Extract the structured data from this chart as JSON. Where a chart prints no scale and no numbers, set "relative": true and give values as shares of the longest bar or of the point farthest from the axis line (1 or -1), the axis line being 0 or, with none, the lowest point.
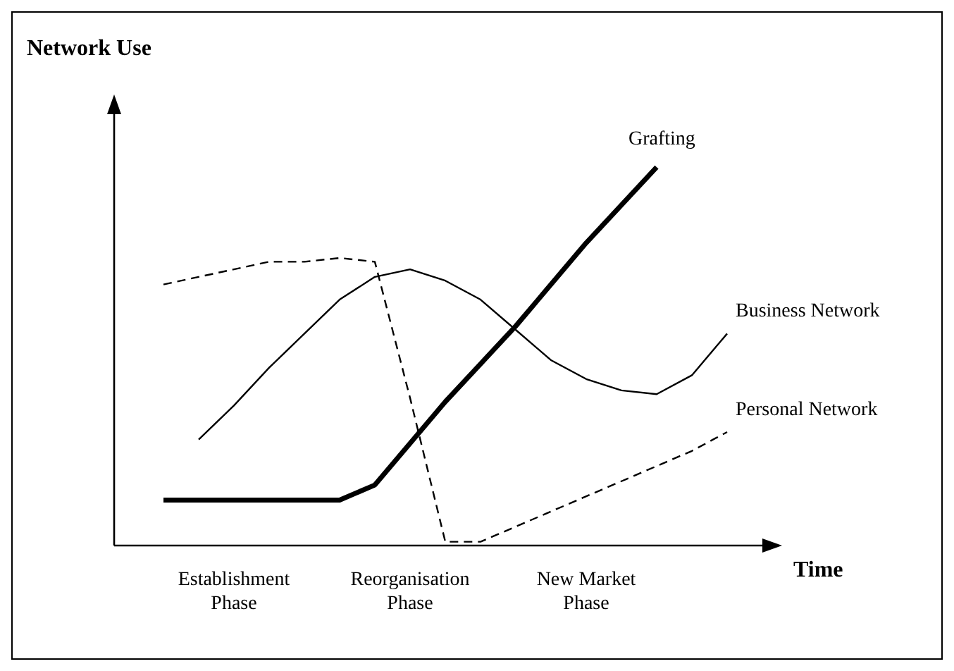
{
  "chart_data": {
    "type": "line",
    "relative": true,
    "ylabel": "Network Use",
    "xlabel": "Time",
    "legend": false,
    "grid": false,
    "marker": "none",
    "categories": [
      null,
      null,
      "Establishment Phase",
      null,
      null,
      null,
      null,
      "Reorganisation Phase",
      null,
      null,
      null,
      null,
      "New Market Phase",
      null,
      null,
      null,
      null
    ],
    "series": [
      {
        "name": "Grafting",
        "color": "#000000",
        "line_style": "solid",
        "values": [
          0.12,
          0.12,
          0.12,
          0.12,
          0.12,
          0.12,
          0.16,
          0.27,
          0.38,
          0.48,
          0.58,
          0.69,
          0.8,
          0.9,
          1.0,
          null,
          null
        ]
      },
      {
        "name": "Business Network",
        "color": "#000000",
        "line_style": "solid",
        "values": [
          null,
          0.28,
          0.37,
          0.47,
          0.56,
          0.65,
          0.71,
          0.73,
          0.7,
          0.65,
          0.57,
          0.49,
          0.44,
          0.41,
          0.4,
          0.45,
          0.56
        ]
      },
      {
        "name": "Personal Network",
        "color": "#000000",
        "line_style": "dashed",
        "values": [
          0.69,
          0.71,
          0.73,
          0.75,
          0.75,
          0.76,
          0.75,
          0.39,
          0.01,
          0.01,
          0.05,
          0.09,
          0.13,
          0.17,
          0.21,
          0.25,
          0.3
        ]
      }
    ]
  }
}
